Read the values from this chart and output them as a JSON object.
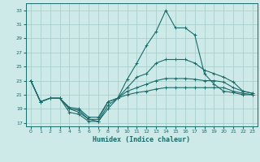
{
  "xlabel": "Humidex (Indice chaleur)",
  "background_color": "#ceeae8",
  "grid_color": "#aacfcd",
  "line_color": "#1a6b6b",
  "xlim": [
    -0.5,
    23.5
  ],
  "ylim": [
    16.5,
    34.0
  ],
  "xticks": [
    0,
    1,
    2,
    3,
    4,
    5,
    6,
    7,
    8,
    9,
    10,
    11,
    12,
    13,
    14,
    15,
    16,
    17,
    18,
    19,
    20,
    21,
    22,
    23
  ],
  "yticks": [
    17,
    19,
    21,
    23,
    25,
    27,
    29,
    31,
    33
  ],
  "series": [
    [
      23,
      20,
      20.5,
      20.5,
      19,
      18.5,
      17.5,
      17.2,
      19.0,
      20.5,
      23.2,
      25.5,
      28.0,
      30.0,
      33.0,
      30.5,
      30.5,
      29.5,
      24.0,
      22.5,
      21.5,
      21.3,
      21.0,
      21.0
    ],
    [
      23,
      20,
      20.5,
      20.5,
      18.5,
      18.2,
      17.2,
      17.2,
      19.5,
      20.5,
      22.0,
      23.5,
      24.0,
      25.5,
      26.0,
      26.0,
      26.0,
      25.5,
      24.5,
      24.0,
      23.5,
      22.8,
      21.5,
      21.2
    ],
    [
      23,
      20,
      20.5,
      20.5,
      19.0,
      18.8,
      17.5,
      17.5,
      20.0,
      20.5,
      21.5,
      22.0,
      22.5,
      23.0,
      23.3,
      23.3,
      23.3,
      23.2,
      23.0,
      23.0,
      22.8,
      22.0,
      21.5,
      21.2
    ],
    [
      23,
      20,
      20.5,
      20.5,
      19.2,
      19.0,
      17.8,
      17.8,
      20.0,
      20.5,
      21.0,
      21.3,
      21.5,
      21.8,
      22.0,
      22.0,
      22.0,
      22.0,
      22.0,
      22.0,
      22.0,
      21.5,
      21.2,
      21.0
    ]
  ]
}
